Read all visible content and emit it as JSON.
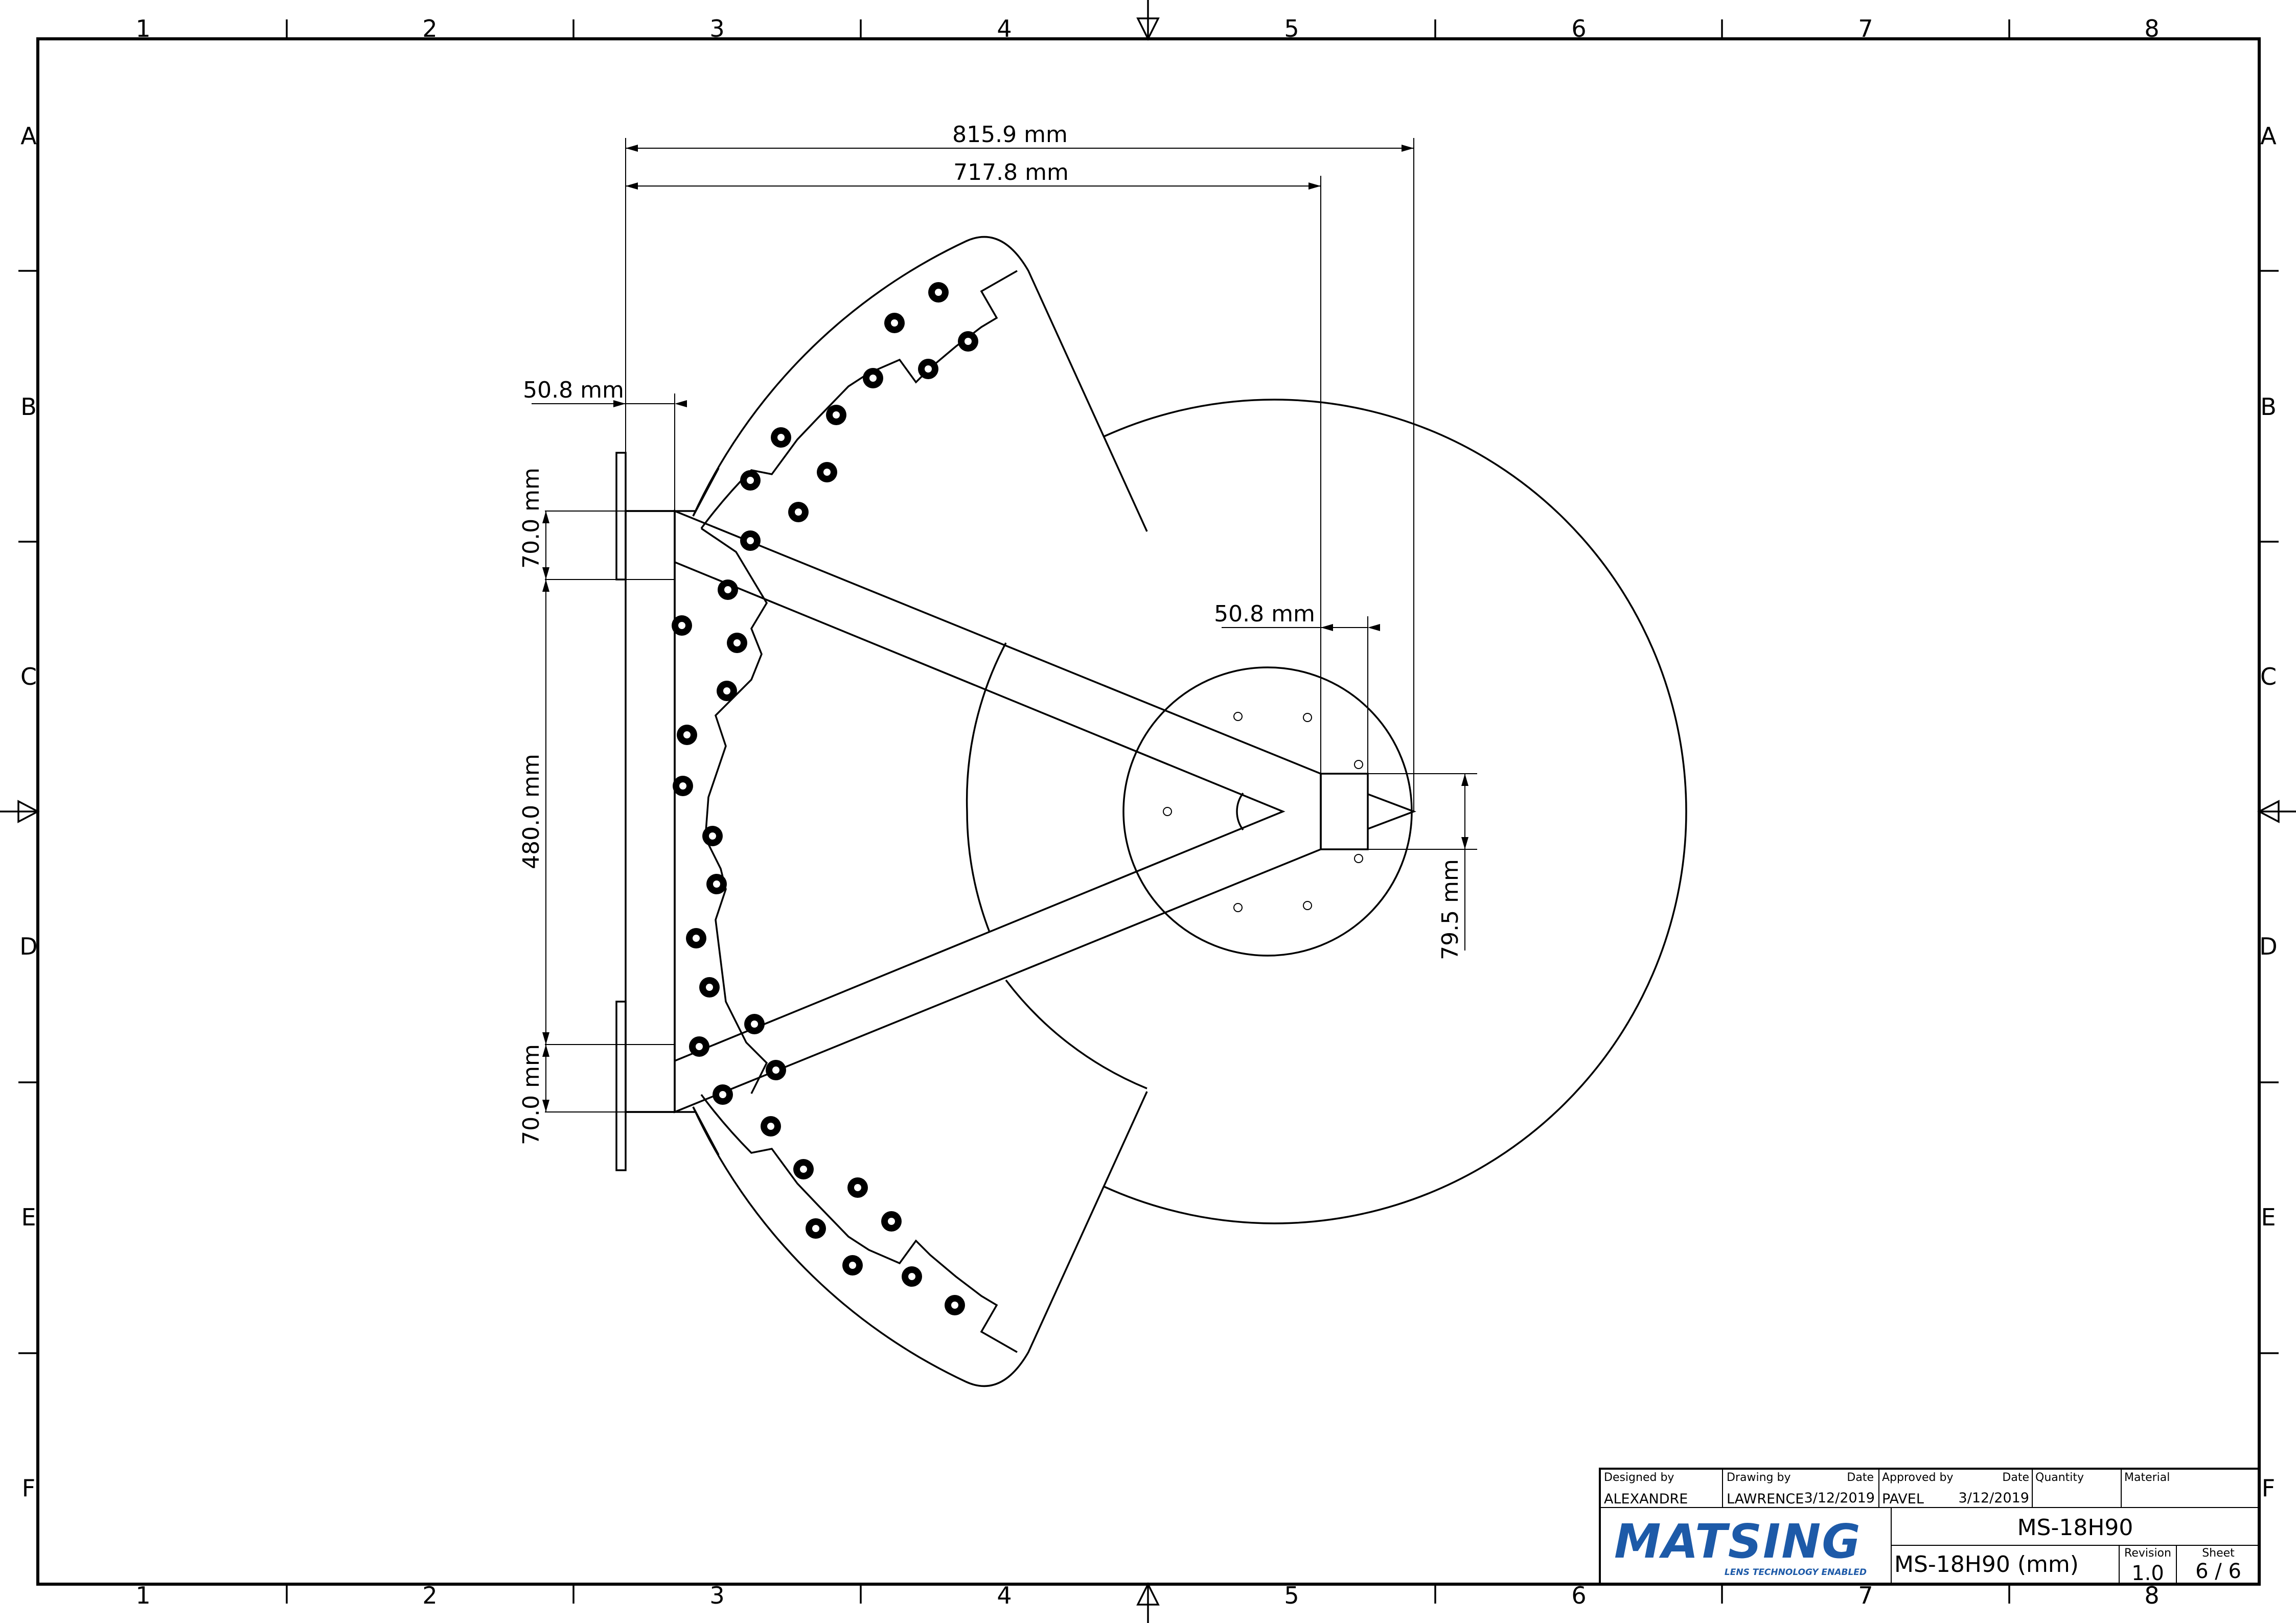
{
  "zones": {
    "columns": [
      "1",
      "2",
      "3",
      "4",
      "5",
      "6",
      "7",
      "8"
    ],
    "rows": [
      "A",
      "B",
      "C",
      "D",
      "E",
      "F"
    ]
  },
  "dimensions": {
    "overall_width": "815.9 mm",
    "inner_width": "717.8 mm",
    "plate_thickness": "50.8 mm",
    "hub_thickness": "50.8 mm",
    "top_mount": "70.0 mm",
    "mount_spacing": "480.0 mm",
    "bottom_mount": "70.0 mm",
    "hub_height": "79.5 mm"
  },
  "title_block": {
    "designed_by_label": "Designed by",
    "designed_by": "ALEXANDRE",
    "drawing_by_label": "Drawing by",
    "drawing_by": "LAWRENCE",
    "drawing_date_label": "Date",
    "drawing_date": "3/12/2019",
    "approved_by_label": "Approved by",
    "approved_by": "PAVEL",
    "approved_date_label": "Date",
    "approved_date": "3/12/2019",
    "quantity_label": "Quantity",
    "material_label": "Material",
    "part_number": "MS-18H90",
    "drawing_title": "MS-18H90 (mm)",
    "revision_label": "Revision",
    "revision": "1.0",
    "sheet_label": "Sheet",
    "sheet": "6 / 6",
    "logo_text": "MATSING",
    "logo_tagline": "LENS TECHNOLOGY ENABLED",
    "brand_color": "#1d5aa8"
  }
}
